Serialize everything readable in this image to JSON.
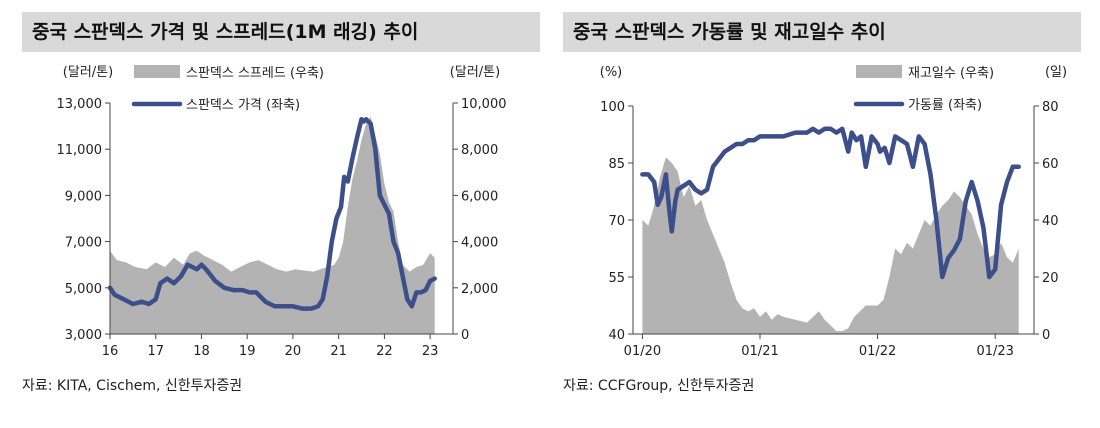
{
  "colors": {
    "area": "#b3b3b3",
    "line": "#3c4f8a",
    "title_bg": "#d9d9d9"
  },
  "chart_data": [
    {
      "type": "line",
      "title": "중국 스판덱스 가격 및 스프레드(1M 래깅) 추이",
      "source": "자료: KITA, Cischem, 신한투자증권",
      "y_left_label": "(달러/톤)",
      "y_right_label": "(달러/톤)",
      "y_left_range": [
        3000,
        13000
      ],
      "y_right_range": [
        0,
        10000
      ],
      "y_left_ticks": [
        "13,000",
        "11,000",
        "9,000",
        "7,000",
        "5,000",
        "3,000"
      ],
      "y_right_ticks": [
        "10,000",
        "8,000",
        "6,000",
        "4,000",
        "2,000",
        "0"
      ],
      "x_range": [
        2016,
        2023.5
      ],
      "x_ticks": [
        "16",
        "17",
        "18",
        "19",
        "20",
        "21",
        "22",
        "23"
      ],
      "series": [
        {
          "name": "스판덱스 스프레드 (우축)",
          "kind": "area",
          "axis": "right",
          "x": [
            2016.0,
            2016.15,
            2016.35,
            2016.55,
            2016.8,
            2017.0,
            2017.2,
            2017.4,
            2017.6,
            2017.75,
            2017.9,
            2018.05,
            2018.25,
            2018.45,
            2018.65,
            2018.85,
            2019.05,
            2019.25,
            2019.45,
            2019.65,
            2019.85,
            2020.05,
            2020.25,
            2020.45,
            2020.6,
            2020.75,
            2020.9,
            2021.0,
            2021.1,
            2021.2,
            2021.3,
            2021.4,
            2021.5,
            2021.6,
            2021.7,
            2021.8,
            2021.9,
            2022.0,
            2022.1,
            2022.2,
            2022.3,
            2022.4,
            2022.55,
            2022.7,
            2022.85,
            2023.0,
            2023.1
          ],
          "values": [
            3600,
            3200,
            3100,
            2900,
            2800,
            3100,
            2900,
            3300,
            3000,
            3500,
            3600,
            3400,
            3200,
            3000,
            2700,
            2900,
            3100,
            3200,
            3000,
            2800,
            2700,
            2800,
            2750,
            2700,
            2800,
            2900,
            3000,
            3300,
            4000,
            5500,
            6700,
            7500,
            8400,
            9100,
            9400,
            8600,
            7800,
            6500,
            5700,
            5300,
            4000,
            3000,
            2700,
            2900,
            3000,
            3500,
            3300
          ]
        },
        {
          "name": "스판덱스 가격 (좌축)",
          "kind": "line",
          "axis": "left",
          "x": [
            2016.0,
            2016.1,
            2016.3,
            2016.5,
            2016.7,
            2016.85,
            2017.0,
            2017.1,
            2017.25,
            2017.4,
            2017.55,
            2017.7,
            2017.8,
            2017.9,
            2018.0,
            2018.1,
            2018.3,
            2018.5,
            2018.7,
            2018.9,
            2019.05,
            2019.2,
            2019.4,
            2019.6,
            2019.8,
            2020.0,
            2020.2,
            2020.4,
            2020.55,
            2020.65,
            2020.75,
            2020.85,
            2020.95,
            2021.05,
            2021.12,
            2021.2,
            2021.3,
            2021.4,
            2021.5,
            2021.55,
            2021.6,
            2021.7,
            2021.8,
            2021.9,
            2022.0,
            2022.1,
            2022.2,
            2022.3,
            2022.4,
            2022.5,
            2022.6,
            2022.7,
            2022.8,
            2022.9,
            2023.0,
            2023.1
          ],
          "values": [
            5000,
            4700,
            4500,
            4300,
            4400,
            4300,
            4500,
            5200,
            5400,
            5200,
            5500,
            6000,
            5900,
            5800,
            6000,
            5800,
            5300,
            5000,
            4900,
            4900,
            4800,
            4800,
            4400,
            4200,
            4200,
            4200,
            4100,
            4100,
            4200,
            4500,
            5500,
            7000,
            8000,
            8500,
            9800,
            9600,
            10600,
            11500,
            12300,
            12200,
            12300,
            12100,
            11000,
            9000,
            8600,
            8200,
            7000,
            6500,
            5500,
            4500,
            4200,
            4800,
            4800,
            4900,
            5300,
            5400
          ]
        }
      ]
    },
    {
      "type": "line",
      "title": "중국 스판덱스 가동률 및 재고일수 추이",
      "source": "자료: CCFGroup, 신한투자증권",
      "y_left_label": "(%)",
      "y_right_label": "(일)",
      "y_left_range": [
        40,
        100
      ],
      "y_right_range": [
        0,
        80
      ],
      "y_left_ticks": [
        "100",
        "85",
        "70",
        "55",
        "40"
      ],
      "y_right_ticks": [
        "80",
        "60",
        "40",
        "20",
        "0"
      ],
      "x_range": [
        2019.92,
        2023.33
      ],
      "x_ticks": [
        "01/20",
        "01/21",
        "01/22",
        "01/23"
      ],
      "series": [
        {
          "name": "재고일수 (우축)",
          "kind": "area",
          "axis": "right",
          "x": [
            2020.0,
            2020.05,
            2020.1,
            2020.15,
            2020.2,
            2020.25,
            2020.3,
            2020.35,
            2020.4,
            2020.45,
            2020.5,
            2020.55,
            2020.6,
            2020.65,
            2020.7,
            2020.75,
            2020.8,
            2020.85,
            2020.9,
            2020.95,
            2021.0,
            2021.05,
            2021.1,
            2021.15,
            2021.2,
            2021.3,
            2021.4,
            2021.5,
            2021.55,
            2021.6,
            2021.65,
            2021.7,
            2021.75,
            2021.8,
            2021.85,
            2021.9,
            2021.95,
            2022.0,
            2022.05,
            2022.1,
            2022.15,
            2022.2,
            2022.25,
            2022.3,
            2022.35,
            2022.4,
            2022.45,
            2022.5,
            2022.55,
            2022.6,
            2022.65,
            2022.7,
            2022.75,
            2022.8,
            2022.85,
            2022.9,
            2022.95,
            2023.0,
            2023.05,
            2023.1,
            2023.15,
            2023.2
          ],
          "values": [
            40,
            38,
            45,
            55,
            62,
            60,
            57,
            48,
            52,
            45,
            47,
            40,
            35,
            30,
            25,
            18,
            12,
            9,
            8,
            9,
            6,
            8,
            5,
            7,
            6,
            5,
            4,
            8,
            5,
            3,
            1,
            1,
            2,
            6,
            8,
            10,
            10,
            10,
            12,
            20,
            30,
            28,
            32,
            30,
            35,
            40,
            38,
            42,
            45,
            47,
            50,
            48,
            45,
            42,
            35,
            30,
            27,
            28,
            32,
            27,
            25,
            30
          ]
        },
        {
          "name": "가동률 (좌축)",
          "kind": "line",
          "axis": "left",
          "x": [
            2020.0,
            2020.05,
            2020.1,
            2020.13,
            2020.16,
            2020.2,
            2020.23,
            2020.25,
            2020.28,
            2020.3,
            2020.35,
            2020.4,
            2020.45,
            2020.5,
            2020.55,
            2020.6,
            2020.65,
            2020.7,
            2020.75,
            2020.8,
            2020.85,
            2020.9,
            2020.95,
            2021.0,
            2021.1,
            2021.2,
            2021.3,
            2021.4,
            2021.45,
            2021.5,
            2021.55,
            2021.6,
            2021.65,
            2021.7,
            2021.75,
            2021.78,
            2021.82,
            2021.86,
            2021.9,
            2021.95,
            2022.0,
            2022.02,
            2022.06,
            2022.1,
            2022.15,
            2022.2,
            2022.25,
            2022.3,
            2022.35,
            2022.4,
            2022.45,
            2022.5,
            2022.55,
            2022.6,
            2022.65,
            2022.7,
            2022.75,
            2022.8,
            2022.85,
            2022.9,
            2022.95,
            2023.0,
            2023.05,
            2023.1,
            2023.15,
            2023.2
          ],
          "values": [
            82,
            82,
            80,
            74,
            76,
            82,
            72,
            67,
            75,
            78,
            79,
            80,
            78,
            77,
            78,
            84,
            86,
            88,
            89,
            90,
            90,
            91,
            91,
            92,
            92,
            92,
            93,
            93,
            94,
            93,
            94,
            94,
            93,
            94,
            88,
            93,
            91,
            92,
            84,
            92,
            90,
            88,
            89,
            85,
            92,
            91,
            90,
            84,
            92,
            90,
            82,
            70,
            55,
            60,
            62,
            65,
            75,
            80,
            75,
            68,
            55,
            57,
            74,
            80,
            84,
            84
          ]
        }
      ]
    }
  ]
}
